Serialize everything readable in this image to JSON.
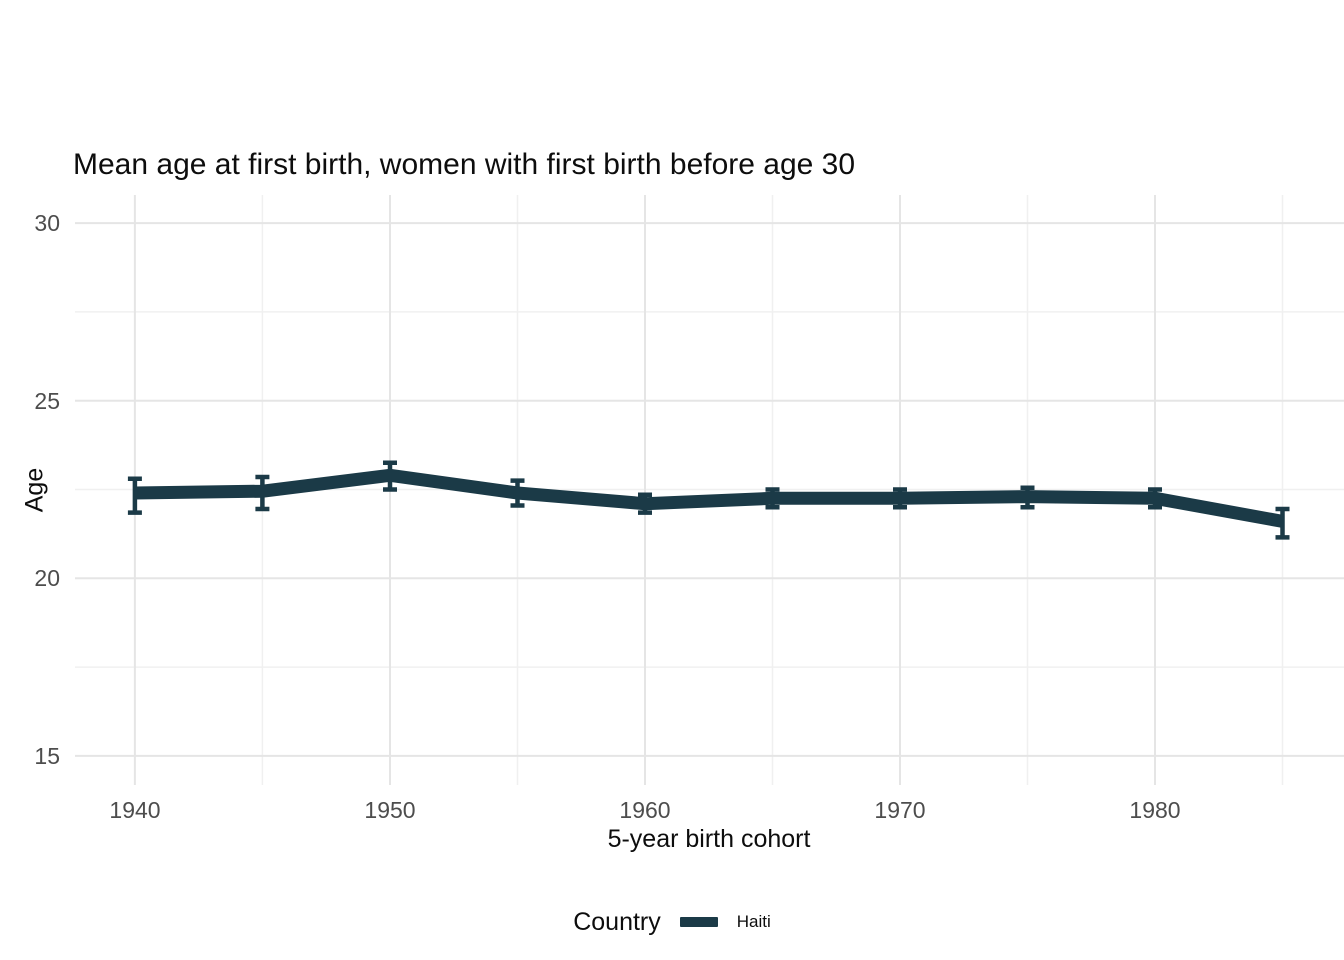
{
  "title": "Mean age at first birth, women with first birth before age 30",
  "chart_data": {
    "type": "line",
    "title": "Mean age at first birth, women with first birth before age 30",
    "xlabel": "5-year birth cohort",
    "ylabel": "Age",
    "legend": {
      "title": "Country",
      "position": "bottom",
      "entries": [
        {
          "label": "Haiti",
          "color": "#1b3a47"
        }
      ]
    },
    "x": [
      1940,
      1945,
      1950,
      1955,
      1960,
      1965,
      1970,
      1975,
      1980,
      1985
    ],
    "series": [
      {
        "name": "Haiti",
        "color": "#1b3a47",
        "values": [
          22.4,
          22.45,
          22.9,
          22.4,
          22.1,
          22.25,
          22.25,
          22.3,
          22.25,
          21.6
        ],
        "ci_low": [
          21.85,
          21.95,
          22.5,
          22.05,
          21.85,
          22.0,
          22.0,
          22.0,
          22.0,
          21.15
        ],
        "ci_high": [
          22.8,
          22.85,
          23.25,
          22.75,
          22.35,
          22.5,
          22.5,
          22.55,
          22.5,
          21.95
        ]
      }
    ],
    "xticks_major": [
      1940,
      1950,
      1960,
      1970,
      1980
    ],
    "xticks_minor": [
      1945,
      1955,
      1965,
      1975,
      1985
    ],
    "yticks_major": [
      15,
      20,
      25,
      30
    ],
    "yticks_minor": [
      17.5,
      22.5,
      27.5
    ],
    "xlim": [
      1937.65,
      1987.41
    ],
    "ylim": [
      14.18,
      30.79
    ],
    "grid": true,
    "background": "#ffffff",
    "colors": {
      "line": "#1b3a47",
      "grid_major": "#e5e5e5",
      "grid_minor": "#f0f0f0",
      "tick_label": "#4d4d4d",
      "text": "#0d0d0d"
    }
  }
}
